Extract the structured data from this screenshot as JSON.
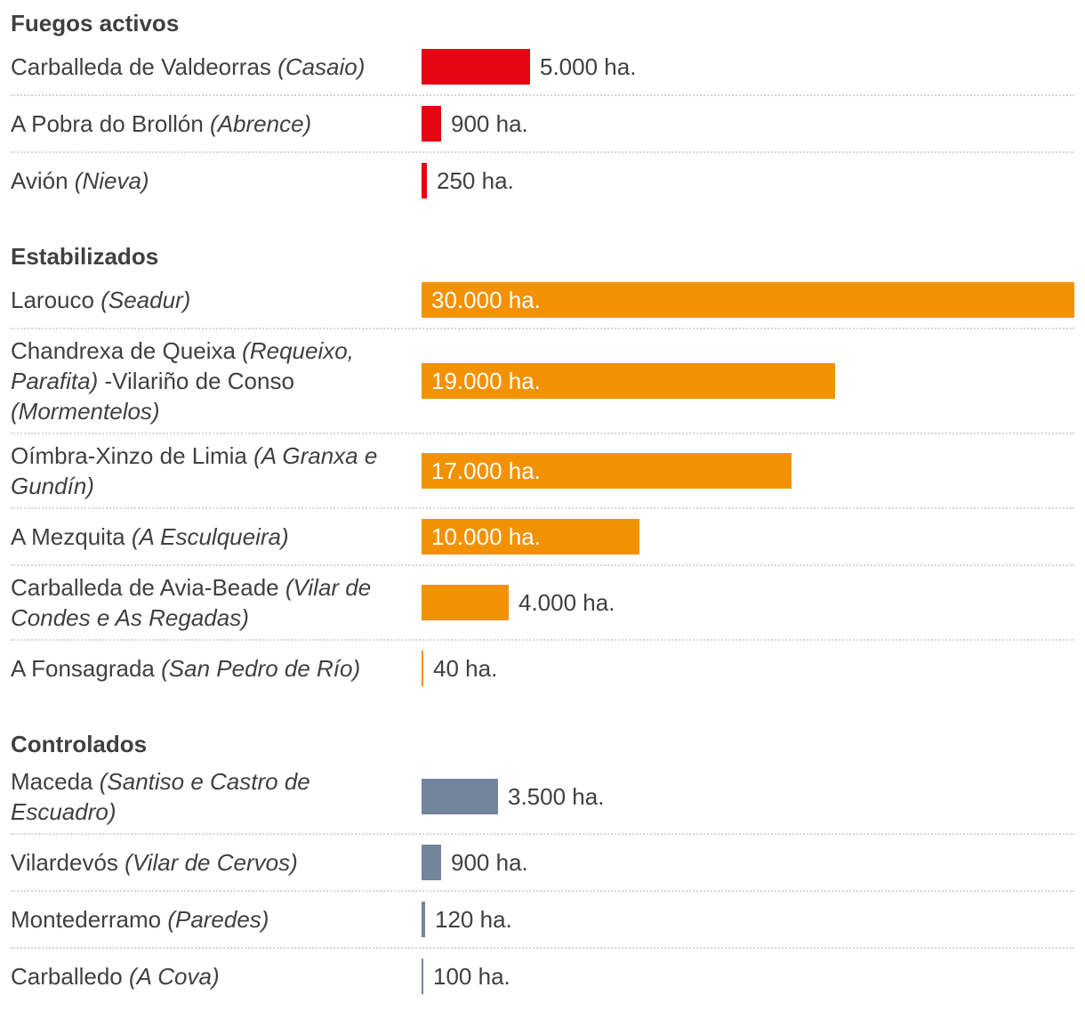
{
  "chart_data": {
    "type": "bar",
    "orientation": "horizontal",
    "unit": "ha.",
    "xlim": [
      0,
      30000
    ],
    "grid": false,
    "groups": [
      {
        "title": "Fuegos activos",
        "color": "#e30613",
        "rows": [
          {
            "label": [
              {
                "t": "Carballeda de Valdeorras "
              },
              {
                "t": "(Casaio)",
                "i": true
              }
            ],
            "value": 5000,
            "value_label": "5.000 ha."
          },
          {
            "label": [
              {
                "t": "A Pobra do Brollón "
              },
              {
                "t": "(Abrence)",
                "i": true
              }
            ],
            "value": 900,
            "value_label": "900 ha."
          },
          {
            "label": [
              {
                "t": "Avión "
              },
              {
                "t": "(Nieva)",
                "i": true
              }
            ],
            "value": 250,
            "value_label": "250 ha."
          }
        ]
      },
      {
        "title": "Estabilizados",
        "color": "#f39200",
        "rows": [
          {
            "label": [
              {
                "t": "Larouco "
              },
              {
                "t": "(Seadur)",
                "i": true
              }
            ],
            "value": 30000,
            "value_label": "30.000 ha."
          },
          {
            "label": [
              {
                "t": "Chandrexa de Queixa "
              },
              {
                "t": "(Requeixo, Parafita)",
                "i": true
              },
              {
                "t": " -Vilariño de Conso "
              },
              {
                "t": "(Mormentelos)",
                "i": true
              }
            ],
            "value": 19000,
            "value_label": "19.000 ha."
          },
          {
            "label": [
              {
                "t": "Oímbra-Xinzo de Limia "
              },
              {
                "t": "(A Granxa e Gundín)",
                "i": true
              }
            ],
            "value": 17000,
            "value_label": "17.000 ha."
          },
          {
            "label": [
              {
                "t": "A Mezquita "
              },
              {
                "t": "(A Esculqueira)",
                "i": true
              }
            ],
            "value": 10000,
            "value_label": "10.000 ha."
          },
          {
            "label": [
              {
                "t": "Carballeda de Avia-Beade "
              },
              {
                "t": "(Vilar de Condes e As Regadas)",
                "i": true
              }
            ],
            "value": 4000,
            "value_label": "4.000 ha."
          },
          {
            "label": [
              {
                "t": "A Fonsagrada "
              },
              {
                "t": "(San Pedro de Río)",
                "i": true
              }
            ],
            "value": 40,
            "value_label": "40 ha."
          }
        ]
      },
      {
        "title": "Controlados",
        "color": "#73849d",
        "rows": [
          {
            "label": [
              {
                "t": "Maceda "
              },
              {
                "t": "(Santiso e Castro de Escuadro)",
                "i": true
              }
            ],
            "value": 3500,
            "value_label": "3.500 ha."
          },
          {
            "label": [
              {
                "t": "Vilardevós "
              },
              {
                "t": "(Vilar de Cervos)",
                "i": true
              }
            ],
            "value": 900,
            "value_label": "900 ha."
          },
          {
            "label": [
              {
                "t": "Montederramo "
              },
              {
                "t": "(Paredes)",
                "i": true
              }
            ],
            "value": 120,
            "value_label": "120 ha."
          },
          {
            "label": [
              {
                "t": "Carballedo "
              },
              {
                "t": "(A Cova)",
                "i": true
              }
            ],
            "value": 100,
            "value_label": "100 ha."
          }
        ]
      }
    ]
  }
}
